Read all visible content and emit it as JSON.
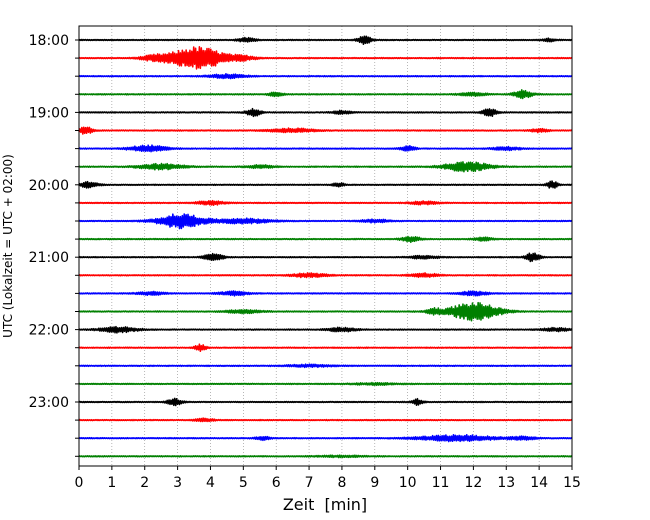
{
  "chart_data": {
    "type": "line",
    "title": "",
    "xlabel": "Zeit  [min]",
    "ylabel": "UTC (Lokalzeit = UTC + 02:00)",
    "xlim": [
      0,
      15
    ],
    "x_ticks": [
      0,
      1,
      2,
      3,
      4,
      5,
      6,
      7,
      8,
      9,
      10,
      11,
      12,
      13,
      14,
      15
    ],
    "grid": "vertical-dotted",
    "trace_interval_minutes": 15,
    "trace_colors": [
      "#000000",
      "#ff0000",
      "#0000ff",
      "#008000"
    ],
    "y_ticks": [
      "18:00",
      "19:00",
      "20:00",
      "21:00",
      "22:00",
      "23:00"
    ],
    "traces": [
      {
        "start": "18:00",
        "events": [
          {
            "t": 8.7,
            "a": 0.5,
            "w": 0.15
          },
          {
            "t": 5.1,
            "a": 0.25,
            "w": 0.2
          },
          {
            "t": 14.3,
            "a": 0.2,
            "w": 0.15
          }
        ]
      },
      {
        "start": "18:15",
        "events": [
          {
            "t": 3.6,
            "a": 1.4,
            "w": 0.6
          },
          {
            "t": 2.3,
            "a": 0.3,
            "w": 0.3
          },
          {
            "t": 5.0,
            "a": 0.25,
            "w": 0.3
          }
        ]
      },
      {
        "start": "18:30",
        "events": [
          {
            "t": 4.5,
            "a": 0.25,
            "w": 0.4
          }
        ]
      },
      {
        "start": "18:45",
        "events": [
          {
            "t": 6.0,
            "a": 0.3,
            "w": 0.15
          },
          {
            "t": 13.5,
            "a": 0.5,
            "w": 0.2
          },
          {
            "t": 12.0,
            "a": 0.2,
            "w": 0.3
          }
        ]
      },
      {
        "start": "19:00",
        "events": [
          {
            "t": 5.3,
            "a": 0.5,
            "w": 0.15
          },
          {
            "t": 12.5,
            "a": 0.5,
            "w": 0.15
          },
          {
            "t": 8.0,
            "a": 0.2,
            "w": 0.2
          }
        ]
      },
      {
        "start": "19:15",
        "events": [
          {
            "t": 0.2,
            "a": 0.45,
            "w": 0.15
          },
          {
            "t": 6.5,
            "a": 0.25,
            "w": 0.5
          },
          {
            "t": 14.0,
            "a": 0.2,
            "w": 0.2
          }
        ]
      },
      {
        "start": "19:30",
        "events": [
          {
            "t": 2.1,
            "a": 0.4,
            "w": 0.4
          },
          {
            "t": 10.0,
            "a": 0.35,
            "w": 0.15
          },
          {
            "t": 13.0,
            "a": 0.2,
            "w": 0.3
          }
        ]
      },
      {
        "start": "19:45",
        "events": [
          {
            "t": 2.5,
            "a": 0.35,
            "w": 0.5
          },
          {
            "t": 11.8,
            "a": 0.6,
            "w": 0.5
          },
          {
            "t": 5.5,
            "a": 0.2,
            "w": 0.3
          }
        ]
      },
      {
        "start": "20:00",
        "events": [
          {
            "t": 0.3,
            "a": 0.35,
            "w": 0.2
          },
          {
            "t": 14.4,
            "a": 0.45,
            "w": 0.12
          },
          {
            "t": 7.9,
            "a": 0.25,
            "w": 0.12
          }
        ]
      },
      {
        "start": "20:15",
        "events": [
          {
            "t": 4.0,
            "a": 0.25,
            "w": 0.3
          },
          {
            "t": 10.5,
            "a": 0.2,
            "w": 0.3
          }
        ]
      },
      {
        "start": "20:30",
        "events": [
          {
            "t": 3.1,
            "a": 0.9,
            "w": 0.5
          },
          {
            "t": 5.0,
            "a": 0.3,
            "w": 0.6
          },
          {
            "t": 9.0,
            "a": 0.2,
            "w": 0.3
          }
        ]
      },
      {
        "start": "20:45",
        "events": [
          {
            "t": 10.1,
            "a": 0.35,
            "w": 0.2
          },
          {
            "t": 12.3,
            "a": 0.2,
            "w": 0.2
          }
        ]
      },
      {
        "start": "21:00",
        "events": [
          {
            "t": 4.1,
            "a": 0.45,
            "w": 0.2
          },
          {
            "t": 13.8,
            "a": 0.55,
            "w": 0.15
          },
          {
            "t": 10.5,
            "a": 0.2,
            "w": 0.3
          }
        ]
      },
      {
        "start": "21:15",
        "events": [
          {
            "t": 7.0,
            "a": 0.25,
            "w": 0.4
          },
          {
            "t": 10.5,
            "a": 0.25,
            "w": 0.3
          }
        ]
      },
      {
        "start": "21:30",
        "events": [
          {
            "t": 2.2,
            "a": 0.2,
            "w": 0.3
          },
          {
            "t": 4.7,
            "a": 0.25,
            "w": 0.3
          },
          {
            "t": 12.0,
            "a": 0.25,
            "w": 0.3
          }
        ]
      },
      {
        "start": "21:45",
        "events": [
          {
            "t": 12.0,
            "a": 1.1,
            "w": 0.55
          },
          {
            "t": 10.8,
            "a": 0.35,
            "w": 0.15
          },
          {
            "t": 5.0,
            "a": 0.2,
            "w": 0.4
          }
        ]
      },
      {
        "start": "22:00",
        "events": [
          {
            "t": 1.2,
            "a": 0.35,
            "w": 0.4
          },
          {
            "t": 8.0,
            "a": 0.25,
            "w": 0.3
          },
          {
            "t": 14.5,
            "a": 0.2,
            "w": 0.3
          }
        ]
      },
      {
        "start": "22:15",
        "events": [
          {
            "t": 3.7,
            "a": 0.4,
            "w": 0.12
          }
        ]
      },
      {
        "start": "22:30",
        "events": [
          {
            "t": 7.0,
            "a": 0.15,
            "w": 0.5
          }
        ]
      },
      {
        "start": "22:45",
        "events": [
          {
            "t": 9.0,
            "a": 0.12,
            "w": 0.5
          }
        ]
      },
      {
        "start": "23:00",
        "events": [
          {
            "t": 2.9,
            "a": 0.45,
            "w": 0.15
          },
          {
            "t": 10.3,
            "a": 0.35,
            "w": 0.12
          }
        ]
      },
      {
        "start": "23:15",
        "events": [
          {
            "t": 3.8,
            "a": 0.2,
            "w": 0.2
          }
        ]
      },
      {
        "start": "23:30",
        "events": [
          {
            "t": 11.5,
            "a": 0.4,
            "w": 0.8
          },
          {
            "t": 5.6,
            "a": 0.25,
            "w": 0.15
          },
          {
            "t": 13.5,
            "a": 0.2,
            "w": 0.3
          }
        ]
      },
      {
        "start": "23:45",
        "events": [
          {
            "t": 8.0,
            "a": 0.1,
            "w": 0.5
          }
        ]
      }
    ]
  }
}
